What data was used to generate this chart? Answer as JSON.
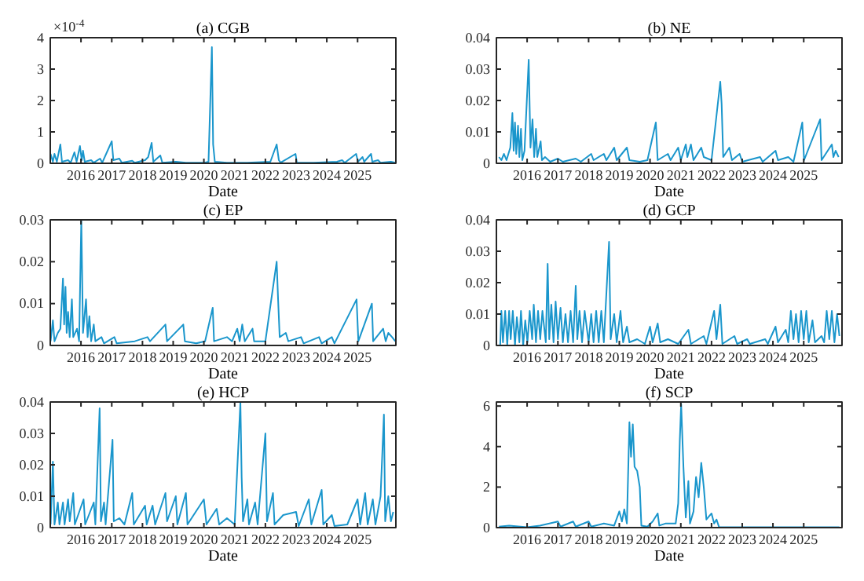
{
  "chart_data": [
    {
      "type": "line",
      "title": "(a) CGB",
      "xlabel": "Date",
      "annotations": [
        "×10$^{-4}$"
      ],
      "color": "#1a96cc",
      "xlim": [
        "2015-01-01",
        "2026-04-01"
      ],
      "xticks": [
        "2016",
        "2017",
        "2018",
        "2019",
        "2020",
        "2021",
        "2022",
        "2023",
        "2024",
        "2025"
      ],
      "ylim": [
        0,
        4
      ],
      "yticks": [
        0,
        1,
        2,
        3,
        4
      ],
      "x": [
        "2015-01-05",
        "2015-02-01",
        "2015-02-20",
        "2015-03-20",
        "2015-05-01",
        "2015-05-20",
        "2015-08-01",
        "2015-09-01",
        "2015-10-15",
        "2015-11-10",
        "2015-12-20",
        "2016-01-10",
        "2016-01-25",
        "2016-02-15",
        "2016-05-01",
        "2016-06-01",
        "2016-08-15",
        "2016-09-10",
        "2017-01-01",
        "2017-01-20",
        "2017-04-01",
        "2017-05-01",
        "2017-09-01",
        "2017-10-01",
        "2018-02-01",
        "2018-03-10",
        "2018-04-20",
        "2018-05-10",
        "2018-08-01",
        "2018-08-25",
        "2019-02-01",
        "2019-06-01",
        "2020-01-10",
        "2020-02-25",
        "2020-04-05",
        "2020-04-20",
        "2020-05-10",
        "2020-10-01",
        "2021-06-01",
        "2022-03-01",
        "2022-05-15",
        "2022-06-10",
        "2022-07-01",
        "2022-12-25",
        "2023-01-10",
        "2023-08-01",
        "2024-05-01",
        "2024-07-01",
        "2024-08-01",
        "2024-12-15",
        "2025-01-05",
        "2025-03-01",
        "2025-03-20",
        "2025-06-10",
        "2025-06-25",
        "2025-09-01",
        "2025-10-01",
        "2026-02-01",
        "2026-03-25"
      ],
      "values": [
        0.3,
        0.05,
        0.3,
        0.05,
        0.6,
        0.05,
        0.1,
        0.02,
        0.35,
        0.05,
        0.55,
        0.1,
        0.4,
        0.05,
        0.1,
        0.02,
        0.15,
        0.02,
        0.7,
        0.1,
        0.15,
        0.02,
        0.08,
        0.02,
        0.1,
        0.2,
        0.65,
        0.05,
        0.25,
        0.02,
        0.05,
        0.02,
        0.02,
        0.05,
        3.7,
        0.6,
        0.05,
        0.02,
        0.02,
        0.05,
        0.6,
        0.1,
        0.02,
        0.3,
        0.02,
        0.02,
        0.05,
        0.1,
        0.02,
        0.3,
        0.05,
        0.2,
        0.05,
        0.3,
        0.05,
        0.1,
        0.02,
        0.05,
        0.02
      ]
    },
    {
      "type": "line",
      "title": "(b) NE",
      "xlabel": "Date",
      "color": "#1a96cc",
      "xlim": [
        "2015-01-01",
        "2026-04-01"
      ],
      "xticks": [
        "2016",
        "2017",
        "2018",
        "2019",
        "2020",
        "2021",
        "2022",
        "2023",
        "2024",
        "2025"
      ],
      "ylim": [
        0,
        0.04
      ],
      "yticks": [
        0,
        0.01,
        0.02,
        0.03,
        0.04
      ],
      "x": [
        "2015-02-01",
        "2015-03-01",
        "2015-04-01",
        "2015-05-01",
        "2015-06-15",
        "2015-07-10",
        "2015-07-25",
        "2015-08-10",
        "2015-08-25",
        "2015-09-15",
        "2015-10-01",
        "2015-10-20",
        "2015-11-05",
        "2015-12-01",
        "2016-01-20",
        "2016-02-10",
        "2016-03-05",
        "2016-03-25",
        "2016-04-15",
        "2016-05-01",
        "2016-06-10",
        "2016-06-25",
        "2016-08-01",
        "2016-10-01",
        "2017-01-01",
        "2017-03-01",
        "2017-08-01",
        "2017-10-01",
        "2018-02-01",
        "2018-03-01",
        "2018-07-01",
        "2018-08-01",
        "2018-11-01",
        "2018-12-01",
        "2019-04-01",
        "2019-05-01",
        "2019-09-01",
        "2019-12-01",
        "2020-03-10",
        "2020-04-01",
        "2020-08-01",
        "2020-09-01",
        "2020-12-01",
        "2021-01-01",
        "2021-03-01",
        "2021-03-20",
        "2021-05-01",
        "2021-06-01",
        "2021-09-01",
        "2021-10-01",
        "2022-01-01",
        "2022-04-15",
        "2022-05-01",
        "2022-05-20",
        "2022-08-01",
        "2022-09-01",
        "2022-12-01",
        "2023-01-01",
        "2023-08-01",
        "2023-09-01",
        "2024-02-01",
        "2024-03-01",
        "2024-07-01",
        "2024-09-01",
        "2024-12-15",
        "2025-01-05",
        "2025-07-15",
        "2025-08-01",
        "2025-12-01",
        "2025-12-20",
        "2026-01-15",
        "2026-02-20"
      ],
      "values": [
        0.002,
        0.001,
        0.003,
        0.001,
        0.005,
        0.016,
        0.004,
        0.013,
        0.003,
        0.012,
        0.002,
        0.011,
        0.001,
        0.004,
        0.033,
        0.005,
        0.014,
        0.002,
        0.011,
        0.002,
        0.007,
        0.001,
        0.002,
        0.0005,
        0.0015,
        0.0005,
        0.0015,
        0.0005,
        0.003,
        0.001,
        0.003,
        0.001,
        0.005,
        0.001,
        0.005,
        0.001,
        0.0005,
        0.001,
        0.013,
        0.001,
        0.003,
        0.001,
        0.005,
        0.001,
        0.006,
        0.002,
        0.006,
        0.001,
        0.005,
        0.002,
        0.001,
        0.026,
        0.019,
        0.002,
        0.005,
        0.001,
        0.003,
        0.0005,
        0.002,
        0.0005,
        0.004,
        0.001,
        0.002,
        0.0005,
        0.013,
        0.001,
        0.014,
        0.001,
        0.006,
        0.002,
        0.004,
        0.002
      ]
    },
    {
      "type": "line",
      "title": "(c) EP",
      "xlabel": "Date",
      "color": "#1a96cc",
      "xlim": [
        "2015-01-01",
        "2026-04-01"
      ],
      "xticks": [
        "2016",
        "2017",
        "2018",
        "2019",
        "2020",
        "2021",
        "2022",
        "2023",
        "2024",
        "2025"
      ],
      "ylim": [
        0,
        0.03
      ],
      "yticks": [
        0,
        0.01,
        0.02,
        0.03
      ],
      "x": [
        "2015-01-05",
        "2015-02-01",
        "2015-02-20",
        "2015-04-01",
        "2015-05-01",
        "2015-06-01",
        "2015-06-15",
        "2015-07-01",
        "2015-07-15",
        "2015-08-01",
        "2015-08-20",
        "2015-09-15",
        "2015-10-01",
        "2015-11-15",
        "2015-12-10",
        "2016-01-05",
        "2016-01-25",
        "2016-03-01",
        "2016-03-20",
        "2016-04-10",
        "2016-05-01",
        "2016-06-01",
        "2016-06-20",
        "2016-09-01",
        "2016-10-01",
        "2017-02-01",
        "2017-03-01",
        "2017-10-01",
        "2018-03-01",
        "2018-04-01",
        "2018-10-01",
        "2018-10-20",
        "2019-05-01",
        "2019-05-20",
        "2019-10-01",
        "2020-01-15",
        "2020-04-15",
        "2020-05-01",
        "2020-10-01",
        "2020-12-01",
        "2021-02-01",
        "2021-03-01",
        "2021-04-01",
        "2021-05-01",
        "2021-08-01",
        "2021-08-20",
        "2022-01-01",
        "2022-05-15",
        "2022-06-01",
        "2022-06-20",
        "2022-09-01",
        "2022-10-01",
        "2023-03-01",
        "2023-04-01",
        "2023-10-01",
        "2023-11-01",
        "2024-03-01",
        "2024-04-01",
        "2024-12-20",
        "2025-01-10",
        "2025-06-20",
        "2025-07-05",
        "2025-11-01",
        "2025-12-01",
        "2026-01-01",
        "2026-02-15",
        "2026-03-25"
      ],
      "values": [
        0.001,
        0.006,
        0.001,
        0.003,
        0.004,
        0.016,
        0.005,
        0.014,
        0.003,
        0.008,
        0.002,
        0.011,
        0.002,
        0.004,
        0.001,
        0.03,
        0.003,
        0.011,
        0.002,
        0.007,
        0.001,
        0.005,
        0.001,
        0.002,
        0.0005,
        0.002,
        0.0005,
        0.001,
        0.002,
        0.001,
        0.005,
        0.001,
        0.005,
        0.001,
        0.0005,
        0.001,
        0.009,
        0.001,
        0.002,
        0.001,
        0.004,
        0.001,
        0.005,
        0.001,
        0.004,
        0.001,
        0.001,
        0.02,
        0.011,
        0.002,
        0.003,
        0.001,
        0.002,
        0.0005,
        0.002,
        0.0005,
        0.002,
        0.0005,
        0.011,
        0.001,
        0.01,
        0.001,
        0.004,
        0.001,
        0.003,
        0.002,
        0.001
      ]
    },
    {
      "type": "line",
      "title": "(d) GCP",
      "xlabel": "Date",
      "color": "#1a96cc",
      "xlim": [
        "2015-01-01",
        "2026-04-01"
      ],
      "xticks": [
        "2016",
        "2017",
        "2018",
        "2019",
        "2020",
        "2021",
        "2022",
        "2023",
        "2024",
        "2025"
      ],
      "ylim": [
        0,
        0.04
      ],
      "yticks": [
        0,
        0.01,
        0.02,
        0.03,
        0.04
      ],
      "x": [
        "2015-02-15",
        "2015-03-01",
        "2015-03-20",
        "2015-04-15",
        "2015-05-10",
        "2015-06-01",
        "2015-06-20",
        "2015-07-15",
        "2015-08-10",
        "2015-09-01",
        "2015-10-01",
        "2015-10-20",
        "2015-11-15",
        "2015-12-10",
        "2016-01-05",
        "2016-02-01",
        "2016-03-01",
        "2016-03-20",
        "2016-04-15",
        "2016-05-10",
        "2016-06-05",
        "2016-07-01",
        "2016-08-10",
        "2016-09-01",
        "2016-09-20",
        "2016-10-15",
        "2016-11-10",
        "2016-12-05",
        "2017-01-01",
        "2017-02-01",
        "2017-03-01",
        "2017-04-01",
        "2017-05-01",
        "2017-06-01",
        "2017-07-01",
        "2017-08-01",
        "2017-08-20",
        "2017-09-15",
        "2017-10-15",
        "2017-11-15",
        "2018-01-01",
        "2018-02-01",
        "2018-03-01",
        "2018-04-01",
        "2018-05-01",
        "2018-06-01",
        "2018-07-01",
        "2018-09-01",
        "2018-09-20",
        "2018-11-01",
        "2018-12-01",
        "2019-01-15",
        "2019-02-15",
        "2019-04-01",
        "2019-05-01",
        "2019-08-01",
        "2019-11-01",
        "2020-01-01",
        "2020-02-01",
        "2020-04-01",
        "2020-05-01",
        "2020-08-01",
        "2020-12-01",
        "2021-04-01",
        "2021-05-01",
        "2021-10-01",
        "2021-11-01",
        "2022-02-01",
        "2022-03-01",
        "2022-04-15",
        "2022-05-10",
        "2022-10-01",
        "2022-11-01",
        "2023-03-01",
        "2023-04-01",
        "2023-10-01",
        "2023-11-01",
        "2024-02-01",
        "2024-03-01",
        "2024-06-01",
        "2024-07-01",
        "2024-08-01",
        "2024-09-01",
        "2024-10-01",
        "2024-11-01",
        "2024-12-01",
        "2025-01-01",
        "2025-02-01",
        "2025-03-01",
        "2025-04-15",
        "2025-05-15",
        "2025-08-01",
        "2025-09-01",
        "2025-10-01",
        "2025-11-01",
        "2025-12-01",
        "2026-01-01",
        "2026-02-01",
        "2026-03-01"
      ],
      "values": [
        0,
        0.011,
        0.001,
        0.011,
        0,
        0.011,
        0.002,
        0.011,
        0,
        0.009,
        0.001,
        0.011,
        0,
        0.008,
        0.001,
        0.011,
        0.002,
        0.013,
        0.001,
        0.011,
        0.002,
        0.011,
        0.001,
        0.026,
        0.002,
        0.013,
        0.001,
        0.014,
        0.002,
        0.012,
        0.001,
        0.01,
        0.001,
        0.011,
        0.001,
        0.019,
        0.002,
        0.011,
        0.001,
        0.011,
        0.001,
        0.01,
        0.001,
        0.011,
        0.001,
        0.011,
        0.001,
        0.033,
        0.002,
        0.01,
        0.001,
        0.011,
        0.001,
        0.006,
        0.001,
        0.002,
        0.0005,
        0.006,
        0.001,
        0.007,
        0.001,
        0.002,
        0.0005,
        0.005,
        0.0005,
        0.003,
        0.0005,
        0.011,
        0.002,
        0.013,
        0.0005,
        0.003,
        0.0005,
        0.002,
        0.0005,
        0.002,
        0.0005,
        0.006,
        0.001,
        0.005,
        0.001,
        0.011,
        0.002,
        0.01,
        0.001,
        0.011,
        0.002,
        0.011,
        0.001,
        0.008,
        0.001,
        0.003,
        0.001,
        0.011,
        0.002,
        0.011,
        0.001,
        0.01,
        0.003
      ]
    },
    {
      "type": "line",
      "title": "(e) HCP",
      "xlabel": "Date",
      "color": "#1a96cc",
      "xlim": [
        "2015-01-01",
        "2026-04-01"
      ],
      "xticks": [
        "2016",
        "2017",
        "2018",
        "2019",
        "2020",
        "2021",
        "2022",
        "2023",
        "2024",
        "2025"
      ],
      "ylim": [
        0,
        0.04
      ],
      "yticks": [
        0,
        0.01,
        0.02,
        0.03,
        0.04
      ],
      "x": [
        "2015-01-05",
        "2015-02-01",
        "2015-02-20",
        "2015-04-01",
        "2015-04-20",
        "2015-06-01",
        "2015-06-20",
        "2015-08-01",
        "2015-08-20",
        "2015-10-01",
        "2015-10-20",
        "2016-02-01",
        "2016-02-20",
        "2016-06-01",
        "2016-06-20",
        "2016-08-10",
        "2016-08-25",
        "2016-10-01",
        "2016-10-20",
        "2017-01-10",
        "2017-01-25",
        "2017-04-01",
        "2017-06-01",
        "2017-09-01",
        "2017-09-20",
        "2018-02-01",
        "2018-02-20",
        "2018-05-01",
        "2018-06-01",
        "2018-10-01",
        "2018-10-20",
        "2019-02-01",
        "2019-02-20",
        "2019-06-01",
        "2019-06-20",
        "2019-09-01",
        "2020-01-01",
        "2020-02-01",
        "2020-06-01",
        "2020-07-01",
        "2020-10-01",
        "2021-01-01",
        "2021-03-10",
        "2021-03-25",
        "2021-04-10",
        "2021-06-01",
        "2021-06-20",
        "2021-09-01",
        "2021-10-01",
        "2022-01-01",
        "2022-01-20",
        "2022-04-01",
        "2022-04-20",
        "2022-08-01",
        "2023-01-01",
        "2023-02-01",
        "2023-06-01",
        "2023-07-01",
        "2023-11-01",
        "2023-11-20",
        "2024-03-01",
        "2024-04-01",
        "2024-09-01",
        "2025-01-01",
        "2025-02-01",
        "2025-04-01",
        "2025-05-01",
        "2025-07-01",
        "2025-08-01",
        "2025-10-01",
        "2025-11-10",
        "2025-11-25",
        "2026-01-01",
        "2026-02-01",
        "2026-03-01"
      ],
      "values": [
        0.001,
        0.021,
        0.001,
        0.008,
        0.001,
        0.008,
        0.001,
        0.009,
        0.002,
        0.011,
        0.001,
        0.009,
        0.001,
        0.008,
        0.001,
        0.038,
        0.002,
        0.008,
        0.001,
        0.028,
        0.002,
        0.003,
        0.001,
        0.011,
        0.001,
        0.007,
        0.001,
        0.007,
        0.001,
        0.011,
        0.002,
        0.01,
        0.001,
        0.011,
        0.001,
        0.004,
        0.009,
        0.001,
        0.006,
        0.001,
        0.003,
        0.001,
        0.04,
        0.016,
        0.002,
        0.009,
        0.001,
        0.008,
        0.001,
        0.03,
        0.002,
        0.011,
        0.001,
        0.004,
        0.005,
        0.0005,
        0.009,
        0.001,
        0.012,
        0.001,
        0.004,
        0.0005,
        0.001,
        0.009,
        0.001,
        0.011,
        0.001,
        0.009,
        0.001,
        0.01,
        0.036,
        0.002,
        0.01,
        0.002,
        0.005
      ]
    },
    {
      "type": "line",
      "title": "(f) SCP",
      "xlabel": "Date",
      "color": "#1a96cc",
      "xlim": [
        "2015-01-01",
        "2026-04-01"
      ],
      "xticks": [
        "2016",
        "2017",
        "2018",
        "2019",
        "2020",
        "2021",
        "2022",
        "2023",
        "2024",
        "2025"
      ],
      "ylim": [
        0,
        6.2
      ],
      "yticks": [
        0,
        2,
        4,
        6
      ],
      "x": [
        "2015-02-01",
        "2015-06-01",
        "2016-01-01",
        "2016-06-01",
        "2017-01-01",
        "2017-02-01",
        "2017-07-01",
        "2017-08-01",
        "2018-01-01",
        "2018-02-01",
        "2018-07-01",
        "2018-11-01",
        "2019-01-01",
        "2019-02-01",
        "2019-03-01",
        "2019-04-01",
        "2019-05-01",
        "2019-05-20",
        "2019-06-10",
        "2019-07-01",
        "2019-08-01",
        "2019-09-01",
        "2019-09-20",
        "2019-12-01",
        "2020-02-01",
        "2020-04-01",
        "2020-04-20",
        "2020-07-01",
        "2020-11-01",
        "2020-12-01",
        "2020-12-20",
        "2021-01-05",
        "2021-02-01",
        "2021-03-01",
        "2021-04-01",
        "2021-04-20",
        "2021-06-01",
        "2021-07-01",
        "2021-08-01",
        "2021-09-01",
        "2021-10-01",
        "2021-11-01",
        "2022-01-01",
        "2022-02-01",
        "2022-03-01",
        "2022-04-01",
        "2023-01-01",
        "2024-01-01",
        "2025-01-01",
        "2026-03-01"
      ],
      "values": [
        0.05,
        0.1,
        0.02,
        0.1,
        0.3,
        0.05,
        0.3,
        0.05,
        0.3,
        0.05,
        0.2,
        0.1,
        0.8,
        0.3,
        0.9,
        0.2,
        5.2,
        3.5,
        5.1,
        3,
        2.8,
        2,
        0.1,
        0.05,
        0.3,
        0.7,
        0.1,
        0.2,
        0.2,
        1.2,
        4.3,
        6.1,
        3,
        0.5,
        2.3,
        0.2,
        0.8,
        2.5,
        1.5,
        3.2,
        2,
        0.4,
        0.7,
        0.2,
        0.4,
        0.02,
        0.02,
        0.02,
        0.02,
        0.02
      ]
    }
  ]
}
